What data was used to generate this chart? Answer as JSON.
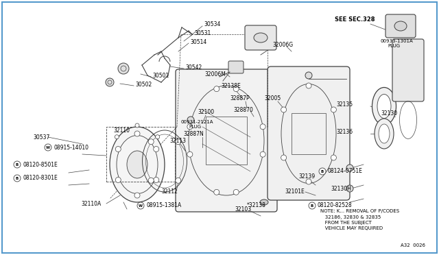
{
  "bg_color": "#ffffff",
  "border_color": "#5599cc",
  "line_color": "#404040",
  "text_color": "#000000",
  "figsize": [
    6.4,
    3.72
  ],
  "dpi": 100,
  "note_text": "NOTE: K... REMOVAL OF P/CODES\n   32186, 32830 & 32835\n   FROM THE SUBJECT\n   VEHICLE MAY REQUIRED",
  "see_sec": "SEE SEC.328",
  "fig_number": "A32  0026",
  "font_size": 5.5
}
